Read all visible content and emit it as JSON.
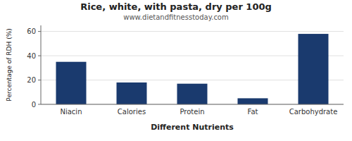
{
  "chart_data": {
    "type": "bar",
    "title": "Rice, white, with pasta, dry per 100g",
    "subtitle": "www.dietandfitnesstoday.com",
    "xlabel": "Different Nutrients",
    "ylabel": "Percentage of RDH (%)",
    "categories": [
      "Niacin",
      "Calories",
      "Protein",
      "Fat",
      "Carbohydrate"
    ],
    "values": [
      35,
      18,
      17,
      5,
      58
    ],
    "color": "#1a3a6e",
    "ylim": [
      0,
      65
    ],
    "yticks": [
      0,
      20,
      40,
      60
    ],
    "grid": true
  }
}
